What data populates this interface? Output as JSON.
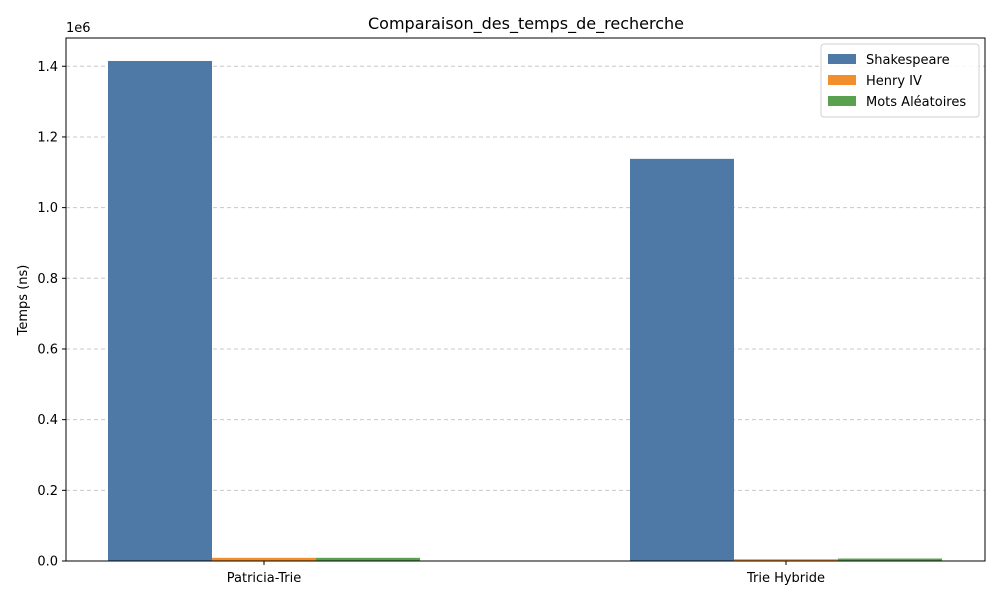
{
  "chart_data": {
    "type": "bar",
    "title": "Comparaison_des_temps_de_recherche",
    "xlabel": "",
    "ylabel": "Temps (ns)",
    "y_offset_text": "1e6",
    "categories": [
      "Patricia-Trie",
      "Trie Hybride"
    ],
    "series": [
      {
        "name": "Shakespeare",
        "color": "#4e79a7",
        "values": [
          1415000,
          1138000
        ]
      },
      {
        "name": "Henry IV",
        "color": "#f28e2b",
        "values": [
          9000,
          5000
        ]
      },
      {
        "name": "Mots Aléatoires",
        "color": "#59a14f",
        "values": [
          9000,
          7000
        ]
      }
    ],
    "ylim": [
      0,
      1480000
    ],
    "yticks": [
      0,
      200000,
      400000,
      600000,
      800000,
      1000000,
      1200000,
      1400000
    ],
    "ytick_labels": [
      "0.0",
      "0.2",
      "0.4",
      "0.6",
      "0.8",
      "1.0",
      "1.2",
      "1.4"
    ],
    "grid": {
      "y": true,
      "style": "dashed",
      "color": "#c8c8c8"
    },
    "legend_position": "top-right"
  }
}
